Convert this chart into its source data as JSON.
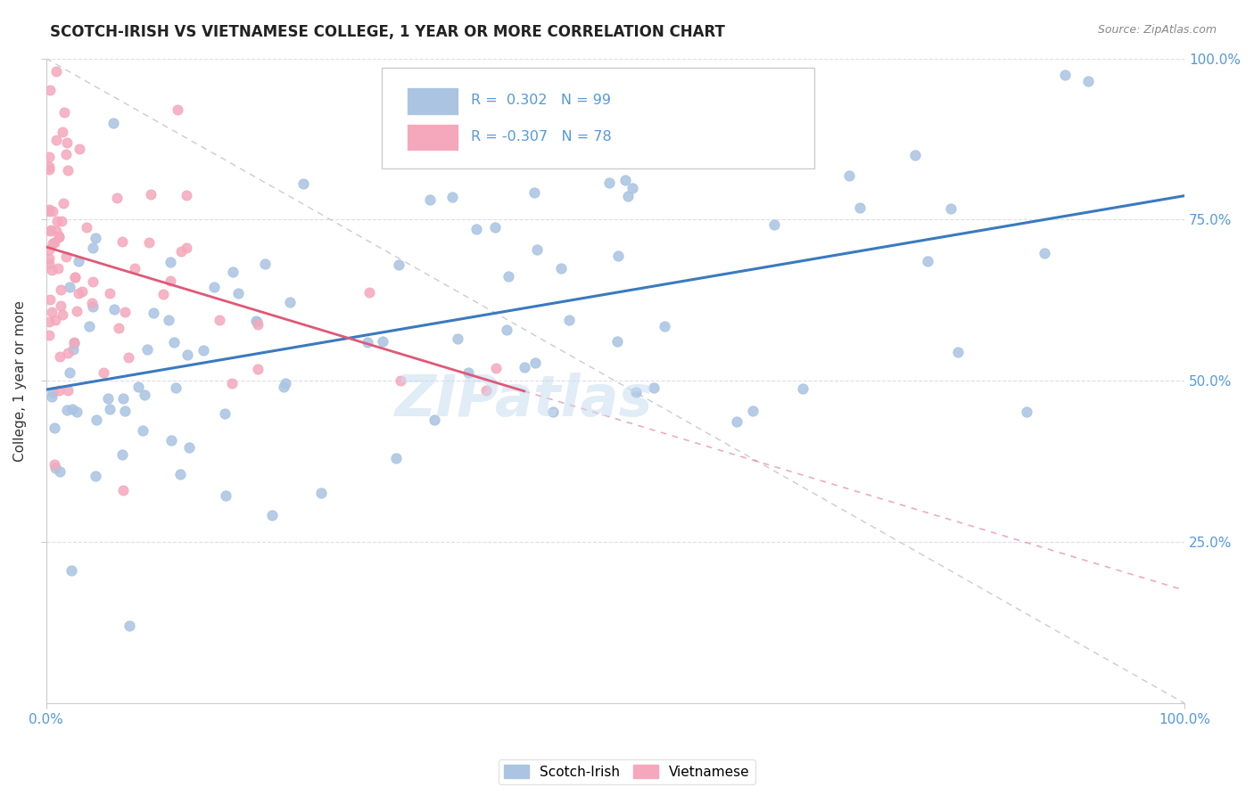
{
  "title": "SCOTCH-IRISH VS VIETNAMESE COLLEGE, 1 YEAR OR MORE CORRELATION CHART",
  "source_text": "Source: ZipAtlas.com",
  "ylabel": "College, 1 year or more",
  "xlim": [
    0,
    1.0
  ],
  "ylim": [
    0,
    1.0
  ],
  "blue_R": 0.302,
  "blue_N": 99,
  "pink_R": -0.307,
  "pink_N": 78,
  "blue_color": "#aac4e2",
  "pink_color": "#f5a8bc",
  "blue_line_color": "#3a7abf",
  "pink_line_color": "#e05878",
  "diag_line_color": "#cccccc",
  "legend_label_blue": "Scotch-Irish",
  "legend_label_pink": "Vietnamese",
  "watermark": "ZIPatlas",
  "tick_color": "#5599dd",
  "grid_color": "#ddddee"
}
